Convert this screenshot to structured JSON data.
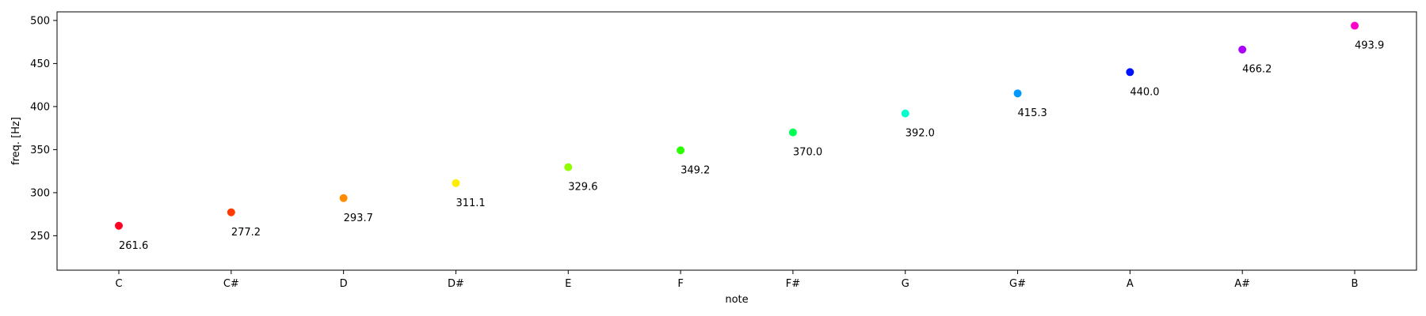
{
  "chart_data": {
    "type": "scatter",
    "title": "",
    "xlabel": "note",
    "ylabel": "freq. [Hz]",
    "ylim": [
      210,
      510
    ],
    "yticks": [
      250,
      300,
      350,
      400,
      450,
      500
    ],
    "grid": false,
    "categories": [
      "C",
      "C#",
      "D",
      "D#",
      "E",
      "F",
      "F#",
      "G",
      "G#",
      "A",
      "A#",
      "B"
    ],
    "values": [
      261.6,
      277.2,
      293.7,
      311.1,
      329.6,
      349.2,
      370.0,
      392.0,
      415.3,
      440.0,
      466.2,
      493.9
    ],
    "labels": [
      "261.6",
      "277.2",
      "293.7",
      "311.1",
      "329.6",
      "349.2",
      "370.0",
      "392.0",
      "415.3",
      "440.0",
      "466.2",
      "493.9"
    ],
    "colors": [
      "#ff0022",
      "#ff3a00",
      "#ff8c00",
      "#ffee00",
      "#8fff00",
      "#2cff00",
      "#00ff55",
      "#00ffcc",
      "#0099ff",
      "#0011ff",
      "#aa00ff",
      "#ff00cc"
    ]
  }
}
